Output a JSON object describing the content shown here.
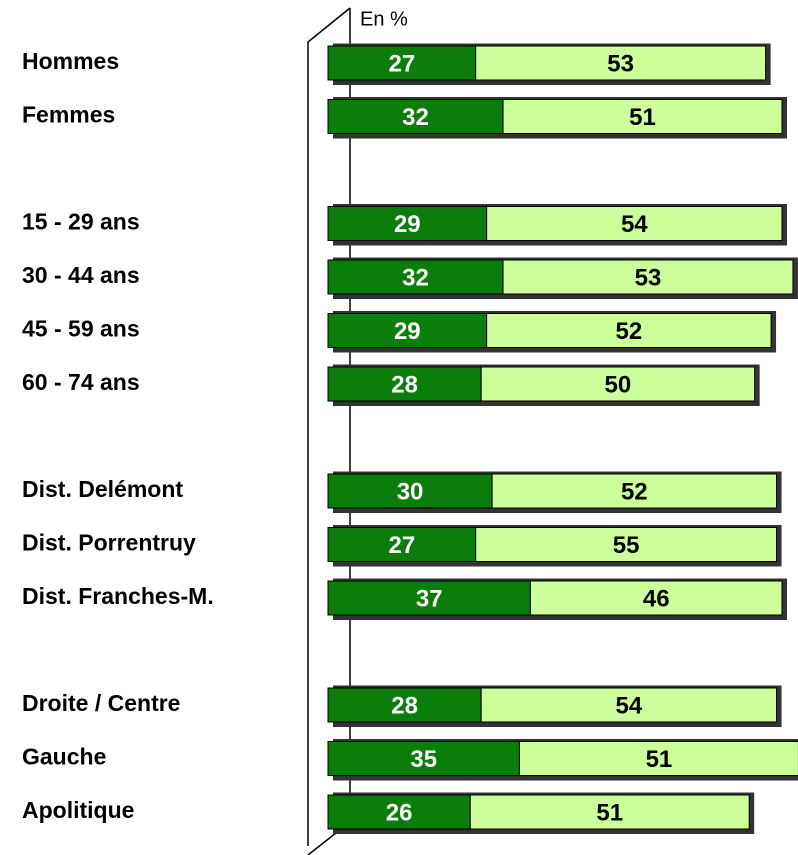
{
  "chart_data": {
    "type": "stacked-bar-horizontal",
    "unit_label": "En %",
    "categories": [
      "Hommes",
      "Femmes",
      null,
      "15 - 29 ans",
      "30 - 44 ans",
      "45 - 59 ans",
      "60 - 74 ans",
      null,
      "Dist. Delémont",
      "Dist. Porrentruy",
      "Dist. Franches-M.",
      null,
      "Droite / Centre",
      "Gauche",
      "Apolitique"
    ],
    "series": [
      {
        "color": "#0b7d0b",
        "label_color": "#ffffff",
        "values": [
          27,
          32,
          null,
          29,
          32,
          29,
          28,
          null,
          30,
          27,
          37,
          null,
          28,
          35,
          26
        ]
      },
      {
        "color": "#ccff99",
        "label_color": "#000000",
        "values": [
          53,
          51,
          null,
          54,
          53,
          52,
          50,
          null,
          52,
          55,
          46,
          null,
          54,
          51,
          51
        ]
      }
    ]
  }
}
